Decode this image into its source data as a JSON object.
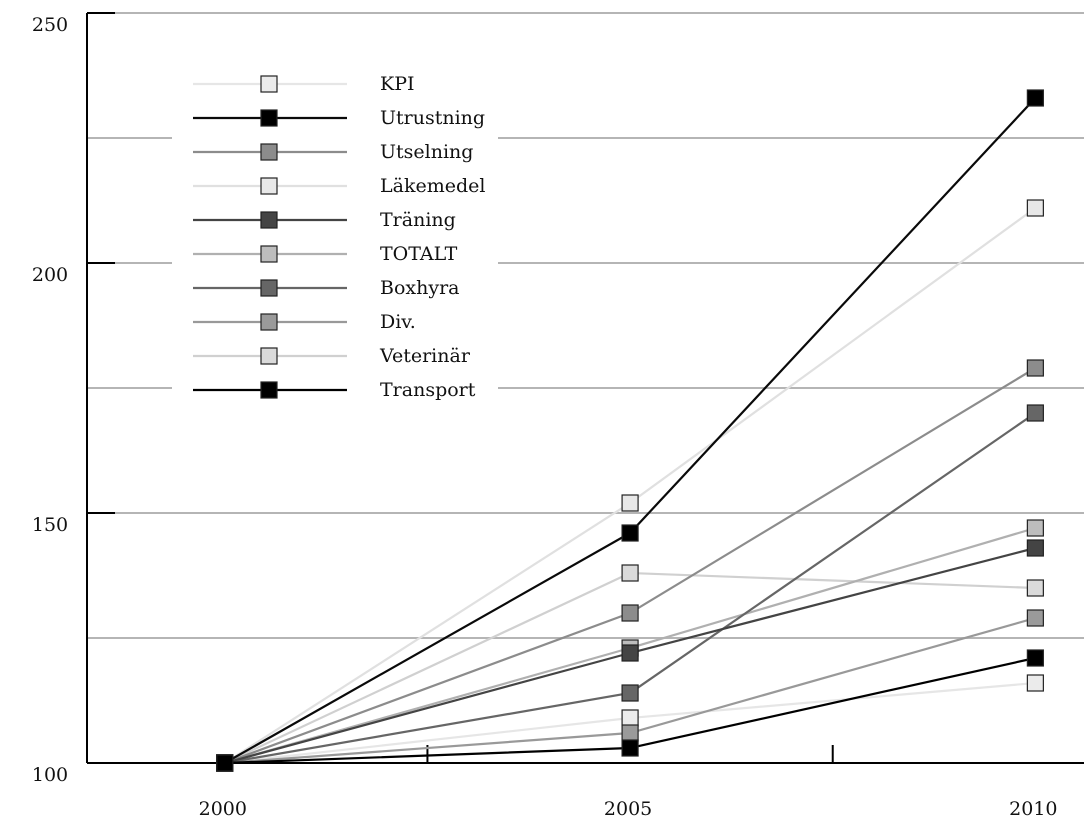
{
  "chart_data": {
    "type": "line",
    "title": "",
    "xlabel": "",
    "ylabel": "",
    "x": [
      2000,
      2005,
      2010
    ],
    "x_tick_labels": [
      "2000",
      "2005",
      "2010"
    ],
    "y_tick_labels": [
      "100",
      "150",
      "200",
      "250"
    ],
    "ylim": [
      100,
      250
    ],
    "xlim": [
      1998.3,
      2010.6
    ],
    "grid": true,
    "legend_position": "top-left",
    "series": [
      {
        "name": "KPI",
        "values": [
          100,
          109,
          116
        ],
        "color": "#e6e6e6",
        "marker": "#ebebeb"
      },
      {
        "name": "Utrustning",
        "values": [
          100,
          146,
          233
        ],
        "color": "#0a0a0a",
        "marker": "#000000"
      },
      {
        "name": "Utselning",
        "values": [
          100,
          130,
          179
        ],
        "color": "#8c8c8c",
        "marker": "#8c8c8c"
      },
      {
        "name": "Läkemedel",
        "values": [
          100,
          152,
          211
        ],
        "color": "#e0e0e0",
        "marker": "#e8e8e8"
      },
      {
        "name": "Träning",
        "values": [
          100,
          122,
          143
        ],
        "color": "#444444",
        "marker": "#444444"
      },
      {
        "name": "TOTALT",
        "values": [
          100,
          123,
          147
        ],
        "color": "#b0b0b0",
        "marker": "#bdbdbd"
      },
      {
        "name": "Boxhyra",
        "values": [
          100,
          114,
          170
        ],
        "color": "#666666",
        "marker": "#666666"
      },
      {
        "name": "Div.",
        "values": [
          100,
          106,
          129
        ],
        "color": "#999999",
        "marker": "#9a9a9a"
      },
      {
        "name": "Veterinär",
        "values": [
          100,
          138,
          135
        ],
        "color": "#d0d0d0",
        "marker": "#dadada"
      },
      {
        "name": "Transport",
        "values": [
          100,
          103,
          121
        ],
        "color": "#000000",
        "marker": "#000000"
      }
    ]
  }
}
